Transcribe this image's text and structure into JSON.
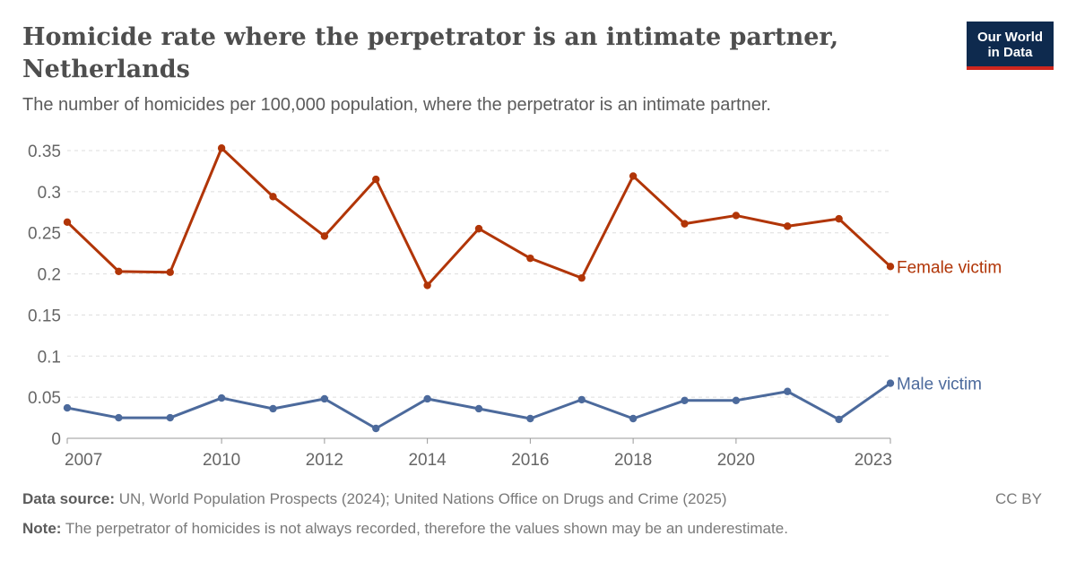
{
  "header": {
    "title": "Homicide rate where the perpetrator is an intimate partner, Netherlands",
    "subtitle": "The number of homicides per 100,000 population, where the perpetrator is an intimate partner."
  },
  "logo": {
    "line1": "Our World",
    "line2": "in Data"
  },
  "footer": {
    "source_label": "Data source:",
    "source_text": "UN, World Population Prospects (2024); United Nations Office on Drugs and Crime (2025)",
    "note_label": "Note:",
    "note_text": "The perpetrator of homicides is not always recorded, therefore the values shown may be an underestimate.",
    "license": "CC BY"
  },
  "chart_data": {
    "type": "line",
    "title": "Homicide rate where the perpetrator is an intimate partner, Netherlands",
    "xlabel": "",
    "ylabel": "",
    "x": [
      2007,
      2008,
      2009,
      2010,
      2011,
      2012,
      2013,
      2014,
      2015,
      2016,
      2017,
      2018,
      2019,
      2020,
      2021,
      2022,
      2023
    ],
    "xlim": [
      2007,
      2023
    ],
    "ylim": [
      0,
      0.35
    ],
    "x_ticks": [
      "2007",
      "2010",
      "2012",
      "2014",
      "2016",
      "2018",
      "2020",
      "2023"
    ],
    "y_ticks": [
      "0",
      "0.05",
      "0.1",
      "0.15",
      "0.2",
      "0.25",
      "0.3",
      "0.35"
    ],
    "grid": "horizontal dashed",
    "legend": "inline labels at line ends (right)",
    "series": [
      {
        "name": "Female victim",
        "color": "#b13507",
        "values": [
          0.263,
          0.203,
          0.202,
          0.353,
          0.294,
          0.246,
          0.315,
          0.186,
          0.255,
          0.219,
          0.195,
          0.319,
          0.261,
          0.271,
          0.258,
          0.267,
          0.209
        ]
      },
      {
        "name": "Male victim",
        "color": "#4c6a9c",
        "values": [
          0.037,
          0.025,
          0.025,
          0.049,
          0.036,
          0.048,
          0.012,
          0.048,
          0.036,
          0.024,
          0.047,
          0.024,
          0.046,
          0.046,
          0.057,
          0.023,
          0.067
        ]
      }
    ]
  }
}
